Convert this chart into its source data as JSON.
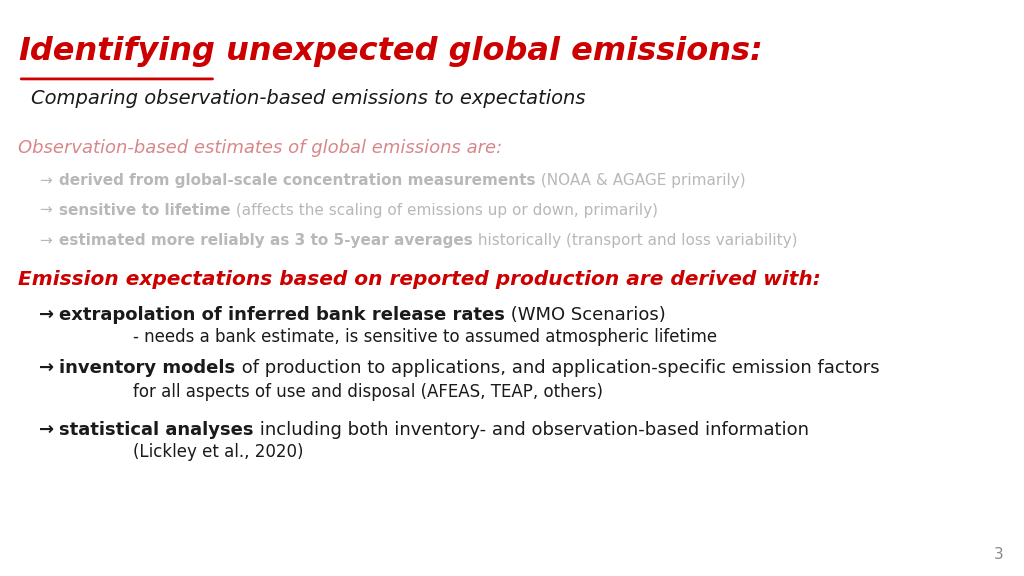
{
  "background_color": "#ffffff",
  "red_color": "#cc0000",
  "faded_red_color": "#d9868a",
  "faded_color": "#b8b8b8",
  "dark_color": "#1a1a1a",
  "page_number": "3",
  "title_underlined": "Identifying",
  "title_rest": " unexpected global emissions:",
  "subtitle": "Comparing observation-based emissions to expectations",
  "sec1_header": "Observation-based estimates of global emissions are:",
  "sec1_bullets": [
    {
      "bold": "derived from global-scale concentration measurements",
      "normal": " (NOAA & AGAGE primarily)"
    },
    {
      "bold": "sensitive to lifetime",
      "normal": " (affects the scaling of emissions up or down, primarily)"
    },
    {
      "bold": "estimated more reliably as 3 to 5-year averages",
      "normal": " historically (transport and loss variability)"
    }
  ],
  "sec2_header": "Emission expectations based on reported production are derived with:",
  "sec2_bullets": [
    {
      "bold": "extrapolation of inferred bank release rates",
      "normal": " (WMO Scenarios)",
      "sub": "- needs a bank estimate, is sensitive to assumed atmospheric lifetime"
    },
    {
      "bold": "inventory models",
      "normal": " of production to applications, and application-specific emission factors",
      "sub": "for all aspects of use and disposal (AFEAS, TEAP, others)"
    },
    {
      "bold": "statistical analyses",
      "normal": " including both inventory- and observation-based information",
      "sub": "(Lickley et al., 2020)"
    }
  ]
}
